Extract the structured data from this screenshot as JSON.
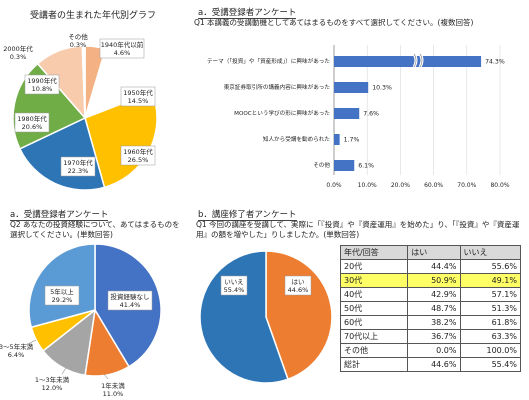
{
  "chart_data": [
    {
      "type": "pie",
      "title": "受講者の生まれた年代別グラフ",
      "slices": [
        {
          "label": "1940年代以前",
          "value": "4.6%",
          "pct": 4.6,
          "color": "#f4b183"
        },
        {
          "label": "1950年代",
          "value": "14.5%",
          "pct": 14.5,
          "color": "#ffffff"
        },
        {
          "label": "1960年代",
          "value": "26.5%",
          "pct": 26.5,
          "color": "#ffc000"
        },
        {
          "label": "1970年代",
          "value": "22.3%",
          "pct": 22.3,
          "color": "#2e75b6"
        },
        {
          "label": "1980年代",
          "value": "20.6%",
          "pct": 20.6,
          "color": "#70ad47"
        },
        {
          "label": "1990年代",
          "value": "10.8%",
          "pct": 10.8,
          "color": "#f8cbad"
        },
        {
          "label": "2000年代",
          "value": "0.3%",
          "pct": 0.3,
          "color": "#a5a5a5"
        },
        {
          "label": "その他",
          "value": "0.3%",
          "pct": 0.3,
          "color": "#7f7f7f"
        }
      ]
    },
    {
      "type": "bar",
      "title": "a．受講登録者アンケート",
      "question": "Q1 本講義の受講動機としてあてはまるものをすべて選択してください。(複数回答)",
      "categories": [
        "テーマ（「投資」や「資産形成」）に興味があった",
        "東京証券取引所の講義内容に興味があった",
        "MOOCという学びの形に興味があった",
        "知人から受講を勧められた",
        "その他"
      ],
      "values": [
        74.3,
        10.3,
        7.6,
        1.7,
        6.1
      ],
      "value_labels": [
        "74.3%",
        "10.3%",
        "7.6%",
        "1.7%",
        "6.1%"
      ],
      "xticks": [
        "0.0%",
        "10.0%",
        "20.0%",
        "60.0%",
        "70.0%",
        "80.0%"
      ],
      "axis_break": "between 20% and 60%",
      "color": "#4472c4"
    },
    {
      "type": "pie",
      "title": "a．受講登録者アンケート",
      "question": "Q2 あなたの投資経験について、あてはまるものを選択してください。(単数回答)",
      "slices": [
        {
          "label": "投資経験なし",
          "value": "41.4%",
          "pct": 41.4,
          "color": "#4472c4"
        },
        {
          "label": "1年未満",
          "value": "11.0%",
          "pct": 11.0,
          "color": "#ed7d31"
        },
        {
          "label": "1～3年未満",
          "value": "12.0%",
          "pct": 12.0,
          "color": "#a5a5a5"
        },
        {
          "label": "3～5年未満",
          "value": "6.4%",
          "pct": 6.4,
          "color": "#ffc000"
        },
        {
          "label": "5年以上",
          "value": "29.2%",
          "pct": 29.2,
          "color": "#5b9bd5"
        }
      ]
    },
    {
      "type": "pie",
      "title": "b．講座修了者アンケート",
      "question": "Q1 今回の講座を受講して、実際に「『投資』や『資産運用』を始めた」り、「『投資』や『資産運用』の額を増やした」りしましたか。(単数回答)",
      "slices": [
        {
          "label": "はい",
          "value": "44.6%",
          "pct": 44.6,
          "color": "#ed7d31"
        },
        {
          "label": "いいえ",
          "value": "55.4%",
          "pct": 55.4,
          "color": "#2e75b6"
        }
      ]
    },
    {
      "type": "table",
      "headers": [
        "年代/回答",
        "はい",
        "いいえ"
      ],
      "rows": [
        [
          "20代",
          "44.4%",
          "55.6%"
        ],
        [
          "30代",
          "50.9%",
          "49.1%"
        ],
        [
          "40代",
          "42.9%",
          "57.1%"
        ],
        [
          "50代",
          "48.7%",
          "51.3%"
        ],
        [
          "60代",
          "38.2%",
          "61.8%"
        ],
        [
          "70代以上",
          "36.7%",
          "63.3%"
        ],
        [
          "その他",
          "0.0%",
          "100.0%"
        ],
        [
          "総計",
          "44.6%",
          "55.4%"
        ]
      ],
      "highlight_row": 1,
      "highlight_color": "#ffff66"
    }
  ]
}
